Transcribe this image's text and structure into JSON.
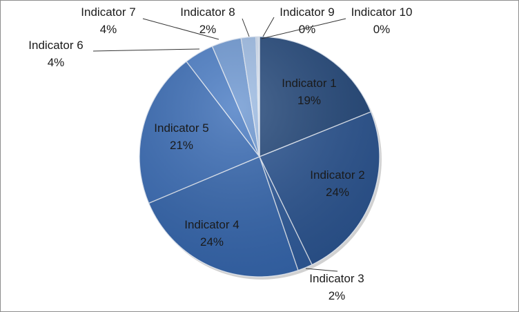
{
  "chart_data": {
    "type": "pie",
    "title": "",
    "legend": "none",
    "slices": [
      {
        "label": "Indicator 1",
        "value": 19,
        "pct_label": "19%",
        "color": "#24487a"
      },
      {
        "label": "Indicator 2",
        "value": 24,
        "pct_label": "24%",
        "color": "#2b5490"
      },
      {
        "label": "Indicator 3",
        "value": 2,
        "pct_label": "2%",
        "color": "#2e5a9a"
      },
      {
        "label": "Indicator 4",
        "value": 24,
        "pct_label": "24%",
        "color": "#3566ad"
      },
      {
        "label": "Indicator 5",
        "value": 21,
        "pct_label": "21%",
        "color": "#3a6cb5"
      },
      {
        "label": "Indicator 6",
        "value": 4,
        "pct_label": "4%",
        "color": "#4a7cc4"
      },
      {
        "label": "Indicator 7",
        "value": 4,
        "pct_label": "4%",
        "color": "#6e98d2"
      },
      {
        "label": "Indicator 8",
        "value": 2,
        "pct_label": "2%",
        "color": "#9dbbe3"
      },
      {
        "label": "Indicator 9",
        "value": 0,
        "pct_label": "0%",
        "color": "#b9cdea"
      },
      {
        "label": "Indicator 10",
        "value": 0,
        "pct_label": "0%",
        "color": "#d3e0f2"
      }
    ]
  }
}
